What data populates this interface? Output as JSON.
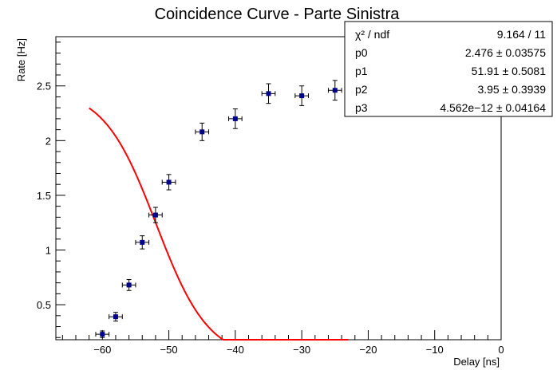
{
  "chart_data": {
    "type": "scatter",
    "title": "Coincidence Curve - Parte Sinistra",
    "xlabel": "Delay [ns]",
    "ylabel": "Rate [Hz]",
    "xlim": [
      -67,
      0
    ],
    "ylim": [
      0.18,
      2.95
    ],
    "grid": false,
    "x_ticks": [
      -60,
      -50,
      -40,
      -30,
      -20,
      -10,
      0
    ],
    "x_tick_labels": [
      "−60",
      "−50",
      "−40",
      "−30",
      "−20",
      "−10",
      "0"
    ],
    "y_ticks": [
      0.5,
      1,
      1.5,
      2,
      2.5
    ],
    "y_tick_labels": [
      "0.5",
      "1",
      "1.5",
      "2",
      "2.5"
    ],
    "marker_color": "#00008b",
    "fit_color": "#ff0000",
    "series": [
      {
        "x": [
          -60,
          -58,
          -56,
          -54,
          -52,
          -50,
          -45,
          -40,
          -35,
          -30,
          -25
        ],
        "y": [
          0.23,
          0.39,
          0.68,
          1.07,
          1.32,
          1.62,
          2.08,
          2.2,
          2.43,
          2.41,
          2.46
        ],
        "xerr": [
          1,
          1,
          1,
          1,
          1,
          1,
          1,
          1,
          1,
          1,
          1
        ],
        "yerr": [
          0.03,
          0.04,
          0.05,
          0.06,
          0.07,
          0.07,
          0.08,
          0.09,
          0.09,
          0.09,
          0.09
        ]
      }
    ],
    "fit": {
      "p0": 2.476,
      "p1": 51.91,
      "p2": 3.95,
      "p3": 0,
      "x_start": -62,
      "x_end": -23
    },
    "stats_box": {
      "rows": [
        {
          "label": "χ² / ndf",
          "value": "9.164 / 11"
        },
        {
          "label": "p0",
          "value": "2.476 ± 0.03575"
        },
        {
          "label": "p1",
          "value": "51.91 ± 0.5081"
        },
        {
          "label": "p2",
          "value": "3.95 ± 0.3939"
        },
        {
          "label": "p3",
          "value": "4.562e−12 ± 0.04164"
        }
      ]
    }
  }
}
